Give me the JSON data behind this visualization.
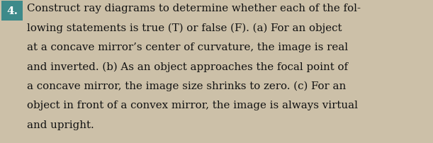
{
  "number": "4.",
  "lines": [
    "Construct ray diagrams to determine whether each of the fol-",
    "lowing statements is true (T) or false (F). (a) For an object",
    "at a concave mirror’s center of curvature, the image is real",
    "and inverted. (b) As an object approaches the focal point of",
    "a concave mirror, the image size shrinks to zero. (c) For an",
    "object in front of a convex mirror, the image is always virtual",
    "and upright."
  ],
  "bg_color": "#ccc0a8",
  "text_color": "#111111",
  "number_bg": "#3d8a8a",
  "number_text_color": "#ffffff",
  "font_size": 10.8,
  "number_font_size": 11.0,
  "fig_width": 6.11,
  "fig_height": 2.03,
  "dpi": 100
}
